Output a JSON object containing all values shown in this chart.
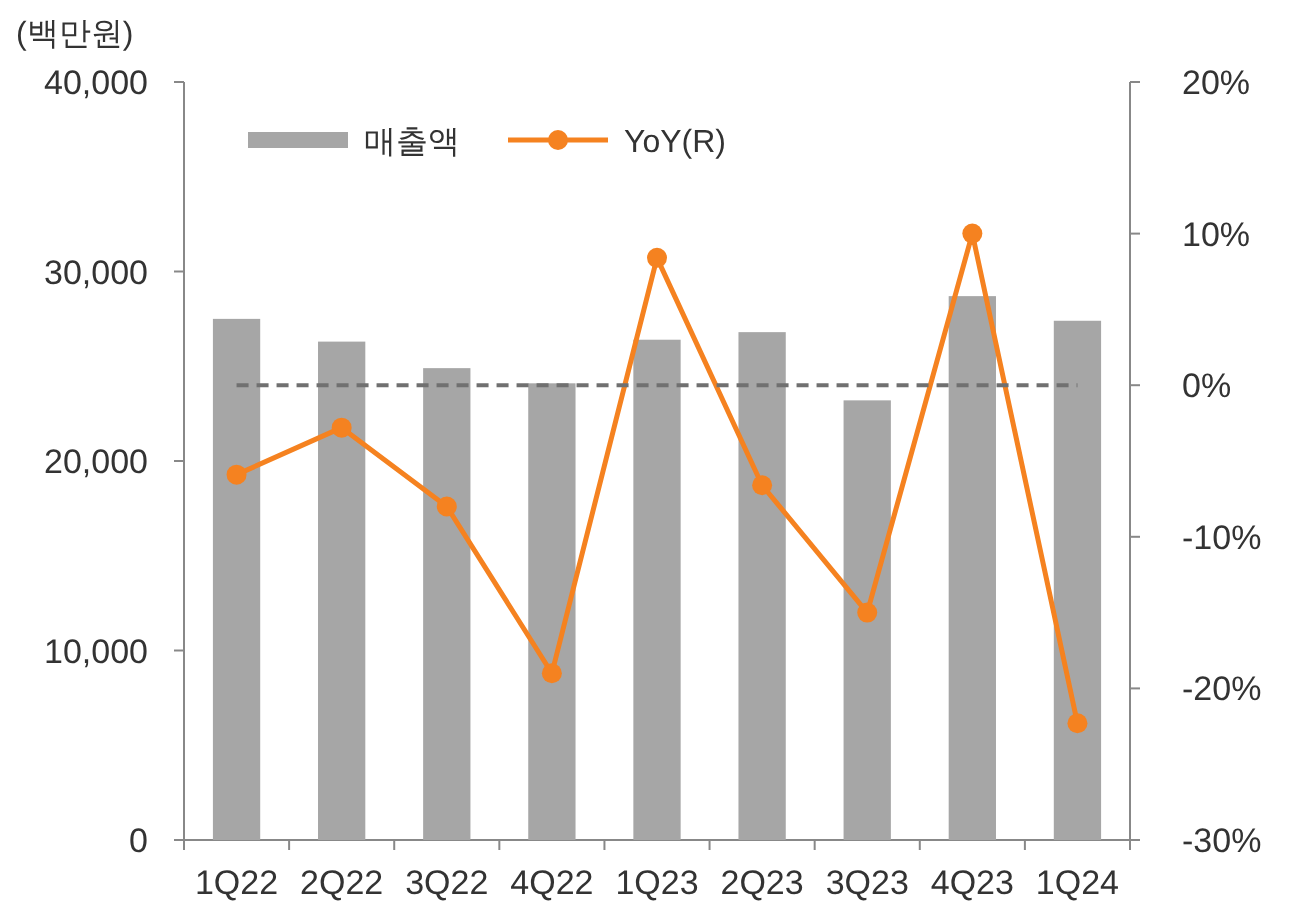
{
  "chart_data": {
    "type": "bar",
    "ylabel": "(백만원)",
    "categories": [
      "1Q22",
      "2Q22",
      "3Q22",
      "4Q22",
      "1Q23",
      "2Q23",
      "3Q23",
      "4Q23",
      "1Q24"
    ],
    "series": [
      {
        "name": "매출액",
        "color": "#a6a6a6",
        "values": [
          27500,
          26300,
          24900,
          24100,
          26400,
          26800,
          23200,
          28700,
          27400
        ]
      },
      {
        "name": "YoY(R)",
        "type": "line",
        "axis": "y2",
        "color": "#f58220",
        "marker": "circle",
        "values": [
          -5.9,
          -2.8,
          -8.0,
          -19.0,
          8.4,
          -6.6,
          -15.0,
          10.0,
          -22.3
        ]
      }
    ],
    "ylim": [
      0,
      40000
    ],
    "yticks": [
      {
        "value": 0,
        "label": "0"
      },
      {
        "value": 10000,
        "label": "10,000"
      },
      {
        "value": 20000,
        "label": "20,000"
      },
      {
        "value": 30000,
        "label": "30,000"
      },
      {
        "value": 40000,
        "label": "40,000"
      }
    ],
    "y2lim": [
      -30,
      20
    ],
    "y2ticks": [
      {
        "value": -30,
        "label": "-30%"
      },
      {
        "value": -20,
        "label": "-20%"
      },
      {
        "value": -10,
        "label": "-10%"
      },
      {
        "value": 0,
        "label": "0%"
      },
      {
        "value": 10,
        "label": "10%"
      },
      {
        "value": 20,
        "label": "20%"
      }
    ],
    "ref_lines": [
      {
        "axis": "y2",
        "value": 0,
        "color": "#707070",
        "line_style": "dashed"
      }
    ],
    "legend": "top left",
    "grid": false
  }
}
